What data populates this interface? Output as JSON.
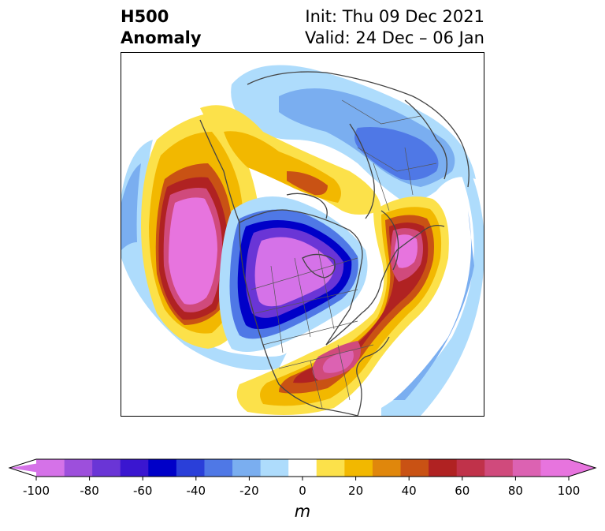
{
  "title": {
    "left_line1": "H500",
    "left_line2": "Anomaly",
    "right_line1": "Init: Thu 09 Dec 2021",
    "right_line2": "Valid: 24 Dec – 06 Jan"
  },
  "colorbar": {
    "unit_label": "m",
    "ticks": [
      "-100",
      "-80",
      "-60",
      "-40",
      "-20",
      "0",
      "20",
      "40",
      "60",
      "80",
      "100"
    ],
    "levels": [
      -100,
      -90,
      -80,
      -70,
      -60,
      -50,
      -40,
      -30,
      -20,
      -10,
      10,
      20,
      30,
      40,
      50,
      60,
      70,
      80,
      90,
      100
    ],
    "colors": [
      "#d572e8",
      "#9d4fdc",
      "#6a35d6",
      "#3a16d0",
      "#0000c8",
      "#2a3fd9",
      "#4f78e6",
      "#7aaef0",
      "#aedcfc",
      "#ffffff",
      "#fce14a",
      "#f2b800",
      "#e0870c",
      "#c95214",
      "#b02222",
      "#c0324a",
      "#d04a7c",
      "#dc62b2",
      "#e774de"
    ],
    "extend": "both"
  },
  "map": {
    "projection": "north-polar-stereographic",
    "region": "North America / North Pacific / North Atlantic",
    "features": [
      "coastlines",
      "country borders",
      "US states",
      "Canadian provinces"
    ]
  },
  "colors": {
    "strong_positive": "#e774de",
    "strong_negative": "#0000c8"
  }
}
